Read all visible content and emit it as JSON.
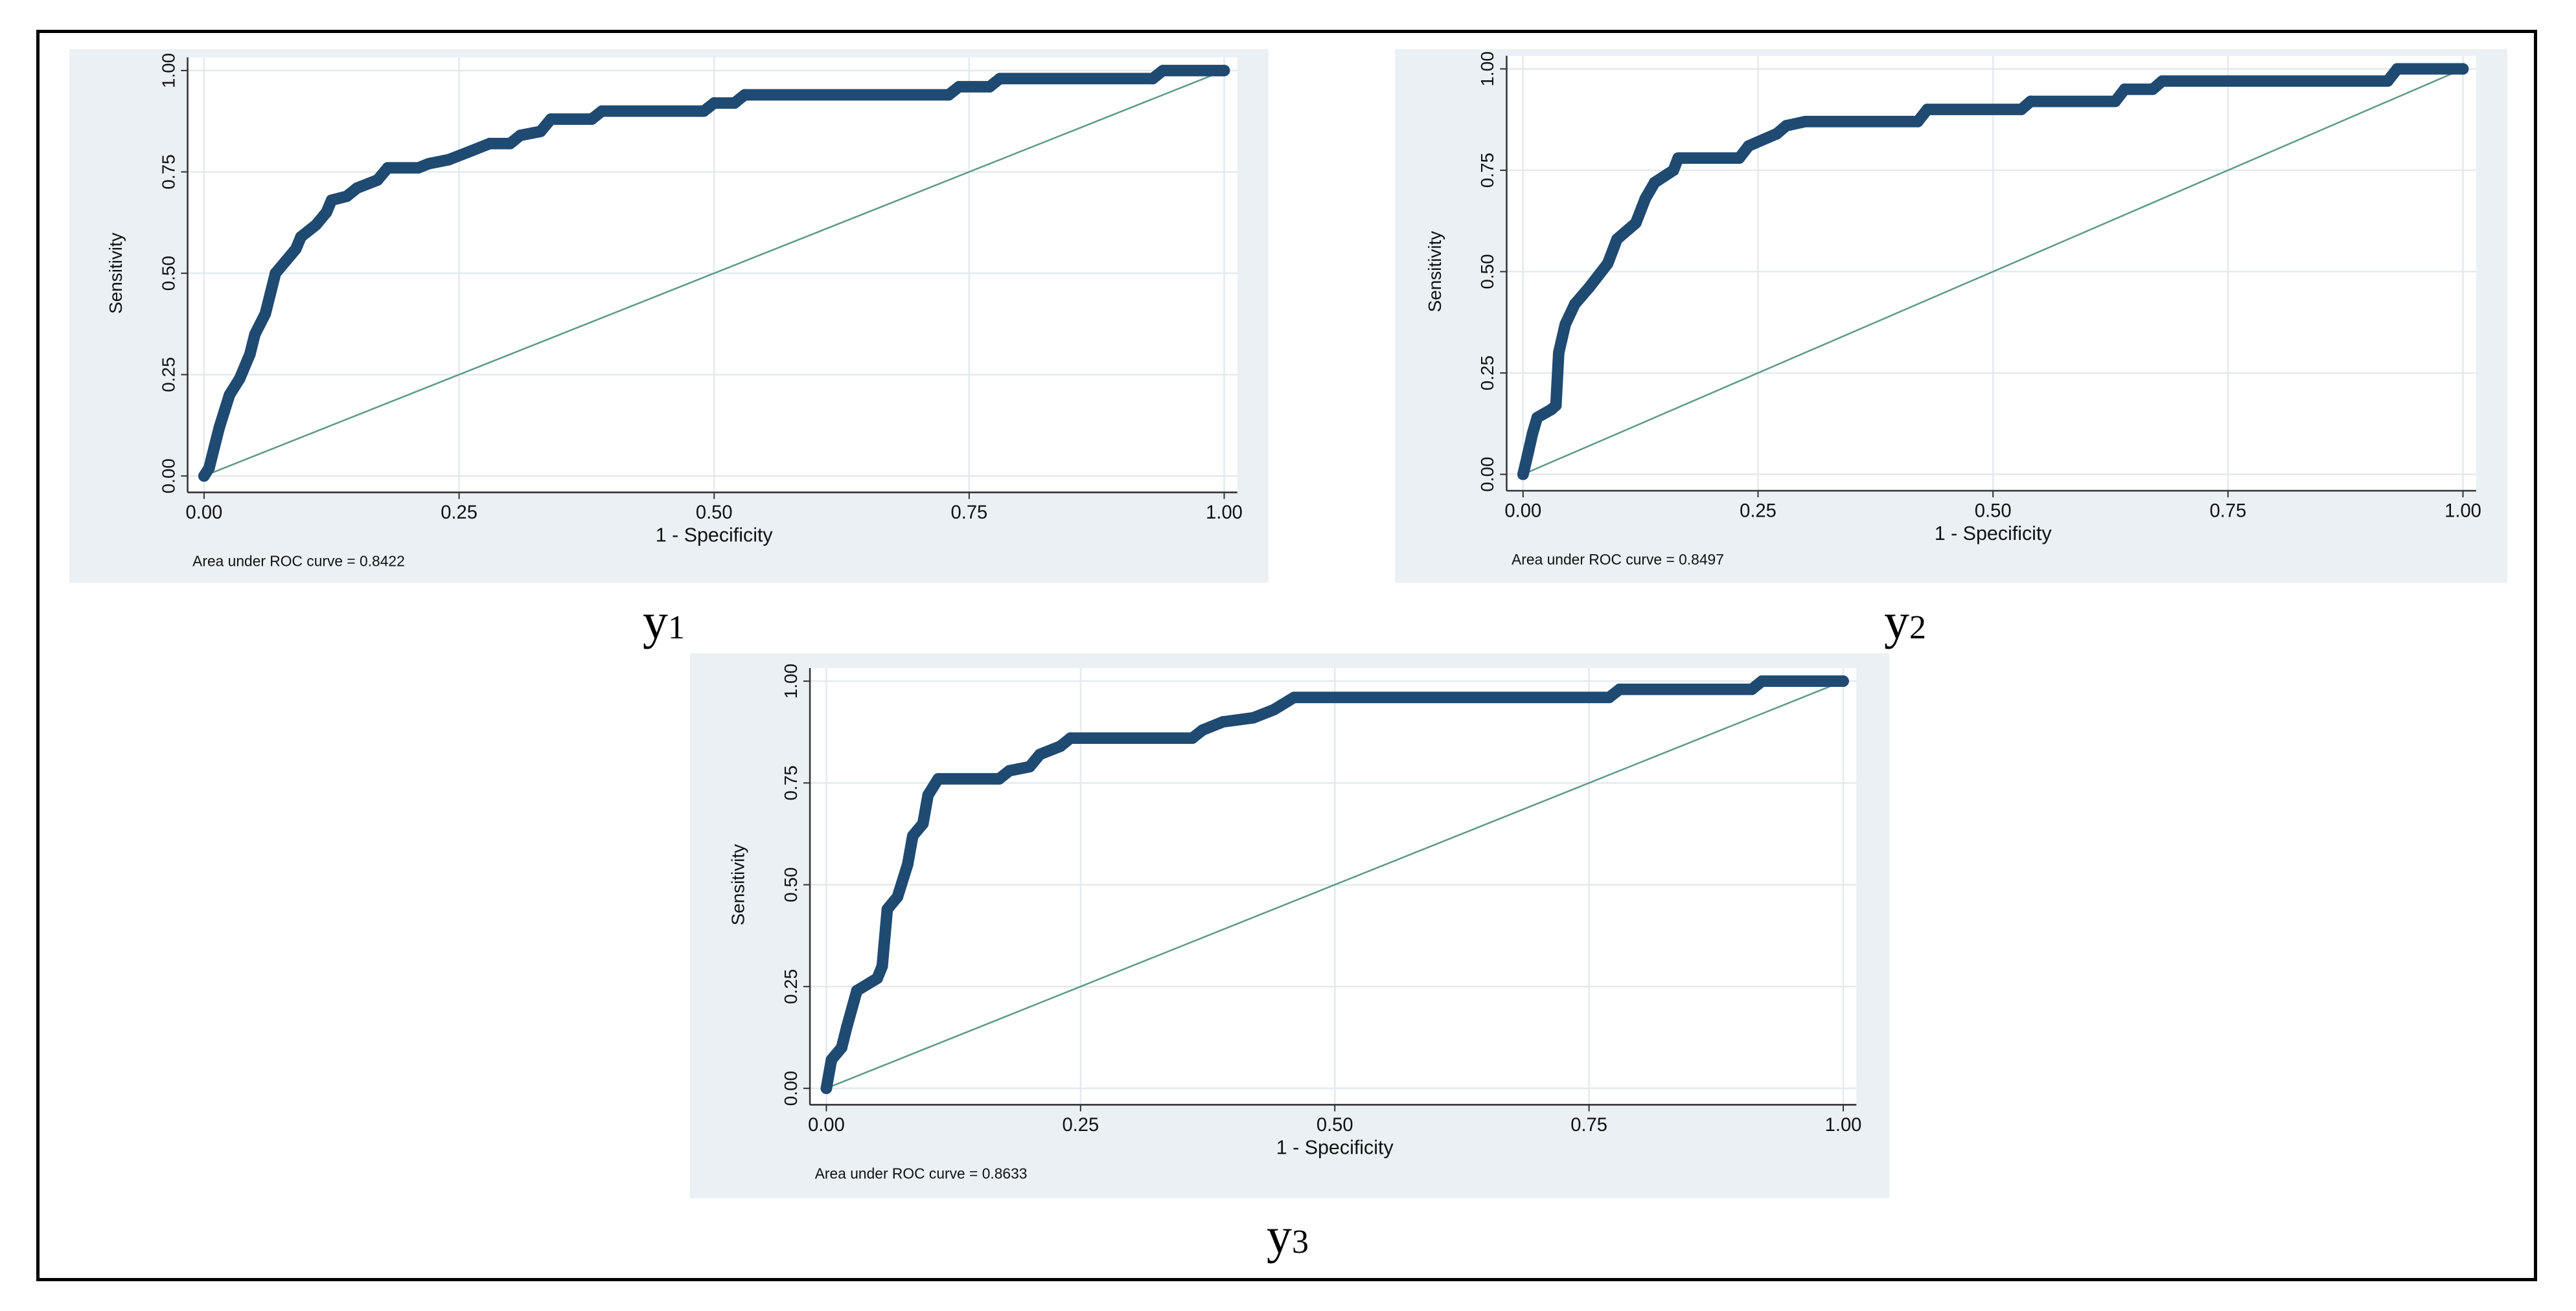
{
  "colors": {
    "panel_bg": "#eaf0f3",
    "curve": "#1f4a72",
    "reference_line": "#5e9a88",
    "grid": "#e3eaee"
  },
  "chart_data": [
    {
      "type": "line",
      "caption": "y1",
      "xlabel": "1 - Specificity",
      "ylabel": "Sensitivity",
      "annotation": "Area under ROC curve = 0.8422",
      "xlim": [
        0,
        1
      ],
      "ylim": [
        0,
        1
      ],
      "xticks": [
        "0.00",
        "0.25",
        "0.50",
        "0.75",
        "1.00"
      ],
      "yticks": [
        "0.00",
        "0.25",
        "0.50",
        "0.75",
        "1.00"
      ],
      "grid": true,
      "reference_line": [
        [
          0,
          0
        ],
        [
          1,
          1
        ]
      ],
      "x": [
        0,
        0.005,
        0.01,
        0.015,
        0.02,
        0.025,
        0.035,
        0.045,
        0.05,
        0.06,
        0.065,
        0.07,
        0.08,
        0.09,
        0.095,
        0.11,
        0.12,
        0.125,
        0.14,
        0.15,
        0.17,
        0.18,
        0.21,
        0.22,
        0.24,
        0.26,
        0.28,
        0.3,
        0.31,
        0.33,
        0.34,
        0.38,
        0.39,
        0.49,
        0.5,
        0.52,
        0.53,
        0.73,
        0.74,
        0.77,
        0.78,
        0.93,
        0.94,
        1
      ],
      "y": [
        0,
        0.02,
        0.07,
        0.12,
        0.16,
        0.2,
        0.24,
        0.3,
        0.35,
        0.4,
        0.45,
        0.5,
        0.53,
        0.56,
        0.59,
        0.62,
        0.65,
        0.68,
        0.69,
        0.71,
        0.73,
        0.76,
        0.76,
        0.77,
        0.78,
        0.8,
        0.82,
        0.82,
        0.84,
        0.85,
        0.88,
        0.88,
        0.9,
        0.9,
        0.92,
        0.92,
        0.94,
        0.94,
        0.96,
        0.96,
        0.98,
        0.98,
        1,
        1
      ]
    },
    {
      "type": "line",
      "caption": "y2",
      "xlabel": "1 - Specificity",
      "ylabel": "Sensitivity",
      "annotation": "Area under ROC curve = 0.8497",
      "xlim": [
        0,
        1
      ],
      "ylim": [
        0,
        1
      ],
      "xticks": [
        "0.00",
        "0.25",
        "0.50",
        "0.75",
        "1.00"
      ],
      "yticks": [
        "0.00",
        "0.25",
        "0.50",
        "0.75",
        "1.00"
      ],
      "grid": true,
      "reference_line": [
        [
          0,
          0
        ],
        [
          1,
          1
        ]
      ],
      "x": [
        0,
        0.005,
        0.01,
        0.015,
        0.03,
        0.035,
        0.038,
        0.045,
        0.055,
        0.07,
        0.09,
        0.1,
        0.12,
        0.13,
        0.14,
        0.16,
        0.165,
        0.23,
        0.24,
        0.27,
        0.28,
        0.3,
        0.42,
        0.43,
        0.53,
        0.54,
        0.63,
        0.64,
        0.67,
        0.68,
        0.92,
        0.93,
        1
      ],
      "y": [
        0,
        0.05,
        0.1,
        0.14,
        0.16,
        0.17,
        0.3,
        0.37,
        0.42,
        0.46,
        0.52,
        0.58,
        0.62,
        0.68,
        0.72,
        0.75,
        0.78,
        0.78,
        0.81,
        0.84,
        0.86,
        0.87,
        0.87,
        0.9,
        0.9,
        0.92,
        0.92,
        0.95,
        0.95,
        0.97,
        0.97,
        1,
        1
      ]
    },
    {
      "type": "line",
      "caption": "y3",
      "xlabel": "1 - Specificity",
      "ylabel": "Sensitivity",
      "annotation": "Area under ROC curve = 0.8633",
      "xlim": [
        0,
        1
      ],
      "ylim": [
        0,
        1
      ],
      "xticks": [
        "0.00",
        "0.25",
        "0.50",
        "0.75",
        "1.00"
      ],
      "yticks": [
        "0.00",
        "0.25",
        "0.50",
        "0.75",
        "1.00"
      ],
      "grid": true,
      "reference_line": [
        [
          0,
          0
        ],
        [
          1,
          1
        ]
      ],
      "x": [
        0,
        0.005,
        0.015,
        0.02,
        0.03,
        0.05,
        0.055,
        0.06,
        0.07,
        0.08,
        0.085,
        0.095,
        0.1,
        0.11,
        0.17,
        0.18,
        0.2,
        0.21,
        0.23,
        0.24,
        0.36,
        0.37,
        0.39,
        0.42,
        0.44,
        0.46,
        0.77,
        0.78,
        0.91,
        0.92,
        1
      ],
      "y": [
        0,
        0.07,
        0.1,
        0.15,
        0.24,
        0.27,
        0.3,
        0.44,
        0.47,
        0.55,
        0.62,
        0.65,
        0.72,
        0.76,
        0.76,
        0.78,
        0.79,
        0.82,
        0.84,
        0.86,
        0.86,
        0.88,
        0.9,
        0.91,
        0.93,
        0.96,
        0.96,
        0.98,
        0.98,
        1,
        1
      ]
    }
  ]
}
